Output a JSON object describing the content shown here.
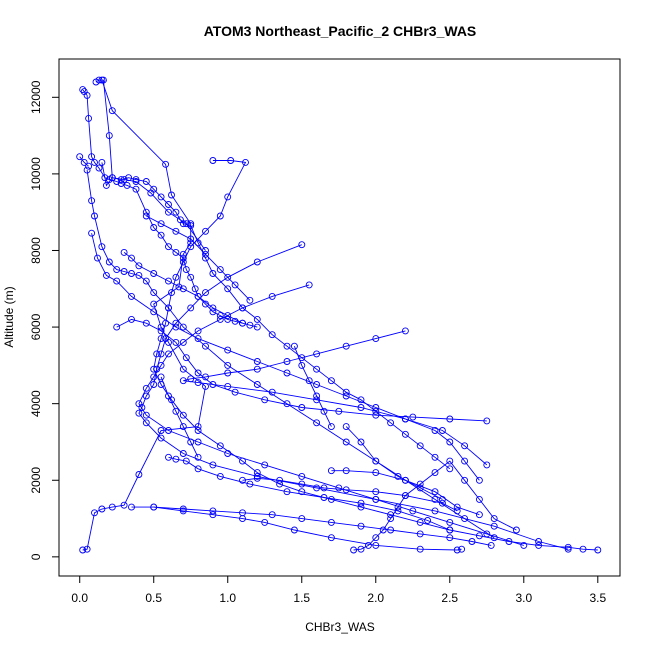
{
  "chart_data": {
    "type": "line",
    "title": "ATOM3 Northeast_Pacific_2 CHBr3_WAS",
    "xlabel": "CHBr3_WAS",
    "ylabel": "Altitude (m)",
    "xlim": [
      -0.14,
      3.65
    ],
    "ylim": [
      -500,
      13000
    ],
    "x_ticks": [
      0,
      0.5,
      1,
      1.5,
      2,
      2.5,
      3,
      3.5
    ],
    "x_tick_labels": [
      "0.0",
      "0.5",
      "1.0",
      "1.5",
      "2.0",
      "2.5",
      "3.0",
      "3.5"
    ],
    "y_ticks": [
      0,
      2000,
      4000,
      6000,
      8000,
      10000,
      12000
    ],
    "y_tick_labels": [
      "0",
      "2000",
      "4000",
      "6000",
      "8000",
      "10000",
      "12000"
    ],
    "series_color": "#0000ff",
    "marker": "open-circle",
    "legend": "none",
    "grid": false,
    "series": [
      {
        "x": [
          0.15,
          0.22,
          0.58,
          0.62,
          0.75,
          0.75,
          0.7,
          0.67,
          0.5,
          0.55,
          0.6,
          0.7,
          0.85,
          0.8,
          0.55,
          0.4,
          0.3,
          0.22,
          0.15,
          0.1,
          0.05,
          0.02
        ],
        "y": [
          12450,
          11650,
          10250,
          9450,
          8700,
          8200,
          7900,
          7050,
          6600,
          6000,
          5600,
          4900,
          4450,
          3400,
          3300,
          2150,
          1350,
          1300,
          1250,
          1150,
          200,
          180
        ]
      },
      {
        "x": [
          0.02,
          0.03,
          0.05,
          0.06,
          0.08,
          0.1,
          0.13,
          0.17,
          0.2,
          0.25,
          0.28,
          0.32,
          0.38,
          0.45,
          0.5,
          0.55,
          0.6,
          0.65,
          0.7,
          0.72,
          0.75,
          0.78,
          0.8,
          0.85,
          0.9,
          0.95,
          1.0,
          1.05,
          1.1,
          1.15,
          1.2
        ],
        "y": [
          12200,
          12150,
          12050,
          11450,
          10450,
          10300,
          10150,
          9900,
          9850,
          9800,
          9750,
          9700,
          9600,
          9000,
          8600,
          8400,
          8100,
          7950,
          7800,
          7500,
          7300,
          7000,
          6800,
          6600,
          6400,
          6300,
          6200,
          6150,
          6100,
          6050,
          6000
        ]
      },
      {
        "x": [
          0.11,
          0.13,
          0.16,
          0.2,
          0.22,
          0.28,
          0.33,
          0.38,
          0.45,
          0.5,
          0.55,
          0.6,
          0.65,
          0.68,
          0.7,
          0.75,
          0.8,
          0.85,
          0.9,
          1.0,
          1.1,
          1.2,
          1.3,
          1.4,
          1.5,
          1.6,
          1.7,
          1.8,
          1.9,
          2.0,
          2.1,
          2.2,
          2.3,
          2.4,
          2.5
        ],
        "y": [
          12400,
          12450,
          12450,
          11000,
          9900,
          9850,
          9900,
          9850,
          9800,
          9600,
          9400,
          9200,
          9000,
          8800,
          8700,
          8650,
          8200,
          7800,
          7400,
          7000,
          6500,
          6200,
          5800,
          5500,
          5200,
          4900,
          4600,
          4300,
          4100,
          3800,
          3500,
          3200,
          2900,
          2600,
          2300
        ]
      },
      {
        "x": [
          0.9,
          1.02,
          1.12,
          1.0,
          0.95,
          0.85,
          0.75,
          0.7,
          0.65,
          0.62,
          0.6,
          0.58,
          0.55,
          0.52,
          0.5,
          0.55,
          0.62,
          0.7,
          0.8,
          0.95,
          1.1,
          1.2,
          1.35,
          1.5,
          1.7,
          1.9,
          2.1,
          2.3,
          2.5,
          2.7,
          2.9,
          3.1,
          3.3,
          3.4,
          3.5
        ],
        "y": [
          10350,
          10350,
          10300,
          9400,
          8900,
          8500,
          8100,
          7700,
          7300,
          6900,
          6500,
          6100,
          5700,
          5300,
          4900,
          4500,
          4100,
          3700,
          3300,
          2900,
          2500,
          2200,
          1900,
          1700,
          1500,
          1300,
          1100,
          900,
          700,
          550,
          400,
          300,
          250,
          200,
          180
        ]
      },
      {
        "x": [
          0.05,
          0.08,
          0.1,
          0.15,
          0.2,
          0.25,
          0.3,
          0.35,
          0.4,
          0.45,
          0.5,
          0.6,
          0.7,
          0.85,
          1.0,
          1.2,
          1.4,
          1.6,
          1.8,
          2.0,
          2.2,
          2.4,
          2.6,
          2.8
        ],
        "y": [
          10100,
          9300,
          8900,
          8100,
          7700,
          7500,
          7450,
          7400,
          7350,
          7200,
          6900,
          6500,
          6000,
          5500,
          5000,
          4500,
          4000,
          3500,
          3000,
          2500,
          2000,
          1500,
          1000,
          500
        ]
      },
      {
        "x": [
          0.08,
          0.12,
          0.18,
          0.25,
          0.35,
          0.5,
          0.65,
          0.8,
          1.0,
          1.2,
          1.4,
          1.6,
          1.8,
          2.0,
          2.2,
          2.4,
          2.5,
          2.6,
          2.7
        ],
        "y": [
          8450,
          7800,
          7350,
          7200,
          6800,
          6400,
          6000,
          5700,
          5400,
          5100,
          4800,
          4500,
          4200,
          3900,
          3600,
          3300,
          3000,
          2500,
          2000
        ]
      },
      {
        "x": [
          0.25,
          0.35,
          0.45,
          0.55,
          0.65,
          0.72,
          0.8,
          0.9,
          1.05,
          1.25,
          1.5,
          1.75,
          2.0,
          2.25,
          2.5,
          2.75
        ],
        "y": [
          6000,
          6200,
          6100,
          5900,
          5600,
          5200,
          4800,
          4500,
          4300,
          4100,
          3900,
          3800,
          3700,
          3650,
          3600,
          3550
        ]
      },
      {
        "x": [
          1.5,
          1.2,
          1.0,
          0.85,
          0.75,
          0.65,
          0.58,
          0.55,
          0.52,
          0.5,
          0.45,
          0.42,
          0.4,
          0.45,
          0.55,
          0.7,
          0.9,
          1.2,
          1.6,
          2.0,
          2.4,
          2.8,
          3.1,
          3.3
        ],
        "y": [
          8150,
          7700,
          7300,
          6900,
          6500,
          6100,
          5700,
          5300,
          4900,
          4500,
          4200,
          3900,
          3750,
          3500,
          3100,
          2700,
          2400,
          2100,
          1800,
          1500,
          1200,
          800,
          400,
          200
        ]
      },
      {
        "x": [
          1.55,
          1.3,
          1.1,
          0.95,
          0.8,
          0.7,
          0.6,
          0.55,
          0.5,
          0.45,
          0.4,
          0.45,
          0.6,
          0.8,
          1.0,
          1.25,
          1.5,
          1.75,
          2.0,
          2.25,
          2.5,
          2.75,
          3.0
        ],
        "y": [
          7100,
          6800,
          6500,
          6200,
          5900,
          5600,
          5300,
          5000,
          4700,
          4400,
          4000,
          3700,
          3300,
          3000,
          2700,
          2400,
          2100,
          1800,
          1500,
          1200,
          900,
          600,
          300
        ]
      },
      {
        "x": [
          2.2,
          2.0,
          1.8,
          1.6,
          1.4,
          1.2,
          1.0,
          0.85,
          0.75,
          0.7,
          0.8,
          1.0,
          1.3,
          1.6,
          1.9,
          2.2,
          2.45,
          2.6,
          2.75
        ],
        "y": [
          5900,
          5700,
          5500,
          5300,
          5100,
          4900,
          4800,
          4700,
          4650,
          4600,
          4550,
          4450,
          4300,
          4100,
          3900,
          3600,
          3300,
          2900,
          2400
        ]
      },
      {
        "x": [
          1.85,
          1.9,
          1.95,
          2.0,
          2.05,
          2.1,
          2.15,
          2.2,
          2.3,
          2.4,
          2.5,
          2.6,
          2.7,
          2.8,
          2.95
        ],
        "y": [
          180,
          200,
          300,
          500,
          700,
          1000,
          1300,
          1600,
          1900,
          2200,
          2500,
          2000,
          1500,
          1000,
          700
        ]
      },
      {
        "x": [
          0.35,
          0.5,
          0.7,
          0.9,
          1.1,
          1.3,
          1.5,
          1.7,
          1.9,
          2.1,
          2.3,
          2.5,
          2.65,
          2.78
        ],
        "y": [
          1300,
          1300,
          1250,
          1200,
          1150,
          1100,
          1000,
          900,
          800,
          700,
          600,
          500,
          400,
          300
        ]
      },
      {
        "x": [
          0.5,
          0.7,
          0.9,
          1.1,
          1.25,
          1.45,
          1.7,
          2.0,
          2.3,
          2.55,
          2.58
        ],
        "y": [
          1300,
          1200,
          1100,
          1000,
          900,
          700,
          500,
          300,
          200,
          180,
          200
        ]
      },
      {
        "x": [
          1.1,
          1.2,
          1.35,
          1.5,
          1.65,
          1.8,
          2.0,
          2.2,
          2.45,
          2.55
        ],
        "y": [
          2000,
          2050,
          2000,
          1900,
          1800,
          1750,
          1700,
          1600,
          1400,
          1200
        ]
      },
      {
        "x": [
          0.6,
          0.65,
          0.72,
          0.8,
          0.95,
          1.15,
          1.4,
          1.65,
          1.9,
          2.15,
          2.35,
          2.5
        ],
        "y": [
          2600,
          2550,
          2500,
          2300,
          2100,
          1900,
          1700,
          1550,
          1400,
          1200,
          950,
          700
        ]
      },
      {
        "x": [
          1.8,
          1.9,
          2.0,
          2.15,
          2.3,
          2.45
        ],
        "y": [
          3400,
          3000,
          2500,
          2100,
          1800,
          1500
        ]
      },
      {
        "x": [
          1.7,
          1.8,
          2.0,
          2.2,
          2.4,
          2.55,
          2.7
        ],
        "y": [
          2250,
          2250,
          2200,
          2000,
          1700,
          1300,
          1100
        ]
      },
      {
        "x": [
          0.15,
          0.18,
          0.22,
          0.3,
          0.38,
          0.48,
          0.6,
          0.72,
          0.85
        ],
        "y": [
          10300,
          9700,
          9900,
          9850,
          9800,
          9500,
          9000,
          8700,
          8000
        ]
      },
      {
        "x": [
          0.45,
          0.55,
          0.65,
          0.75,
          0.85,
          0.95,
          1.05,
          1.15
        ],
        "y": [
          8900,
          8700,
          8500,
          8300,
          7900,
          7500,
          7100,
          6700
        ]
      },
      {
        "x": [
          0.3,
          0.35,
          0.4,
          0.5,
          0.6,
          0.7,
          0.8,
          0.9,
          1.0,
          1.1
        ],
        "y": [
          7950,
          7800,
          7600,
          7400,
          7200,
          7000,
          6800,
          6500,
          6300,
          6100
        ]
      },
      {
        "x": [
          0.55,
          0.6,
          0.65,
          0.7,
          0.75,
          0.8
        ],
        "y": [
          4700,
          4200,
          3800,
          3400,
          3000,
          2600
        ]
      },
      {
        "x": [
          1.45,
          1.5,
          1.55,
          1.6,
          1.65,
          1.7
        ],
        "y": [
          5500,
          5000,
          4600,
          4200,
          3800,
          3400
        ]
      },
      {
        "x": [
          0.0,
          0.03,
          0.06
        ],
        "y": [
          10450,
          10300,
          10200
        ]
      }
    ]
  }
}
